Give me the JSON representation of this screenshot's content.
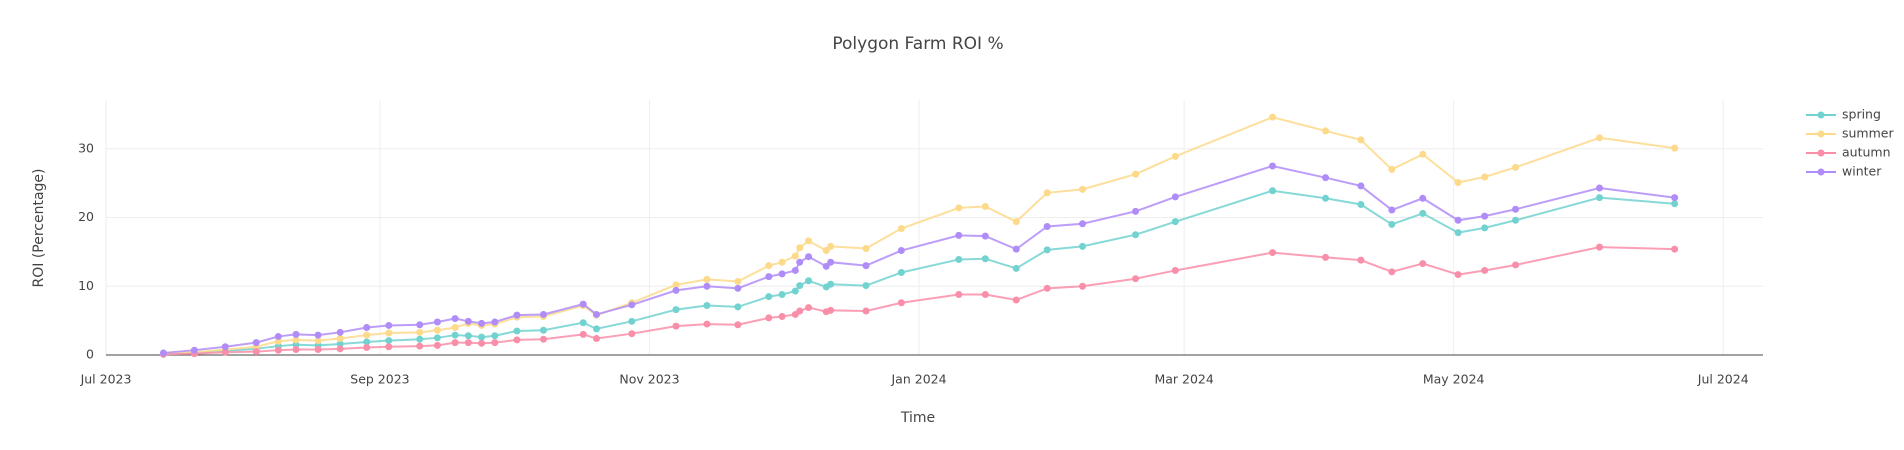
{
  "chart_data": {
    "type": "line",
    "title": "Polygon Farm ROI %",
    "x_label": "Time",
    "y_label": "ROI (Percentage)",
    "x": [
      "2023-07-14",
      "2023-07-21",
      "2023-07-28",
      "2023-08-04",
      "2023-08-09",
      "2023-08-13",
      "2023-08-18",
      "2023-08-23",
      "2023-08-29",
      "2023-09-03",
      "2023-09-10",
      "2023-09-14",
      "2023-09-18",
      "2023-09-21",
      "2023-09-24",
      "2023-09-27",
      "2023-10-02",
      "2023-10-08",
      "2023-10-17",
      "2023-10-20",
      "2023-10-28",
      "2023-11-07",
      "2023-11-14",
      "2023-11-21",
      "2023-11-28",
      "2023-12-01",
      "2023-12-04",
      "2023-12-05",
      "2023-12-07",
      "2023-12-11",
      "2023-12-12",
      "2023-12-20",
      "2023-12-28",
      "2024-01-10",
      "2024-01-16",
      "2024-01-23",
      "2024-01-30",
      "2024-02-07",
      "2024-02-19",
      "2024-02-28",
      "2024-03-21",
      "2024-04-02",
      "2024-04-10",
      "2024-04-17",
      "2024-04-24",
      "2024-05-02",
      "2024-05-08",
      "2024-05-15",
      "2024-06-03",
      "2024-06-20"
    ],
    "series": [
      {
        "name": "spring",
        "color": "#72d2d0",
        "values": [
          0.1,
          0.3,
          0.6,
          0.9,
          1.3,
          1.5,
          1.4,
          1.6,
          1.9,
          2.1,
          2.3,
          2.5,
          2.9,
          2.8,
          2.6,
          2.8,
          3.5,
          3.6,
          4.7,
          3.8,
          4.9,
          6.6,
          7.2,
          7.0,
          8.5,
          8.8,
          9.3,
          10.1,
          10.8,
          9.9,
          10.3,
          10.1,
          12.0,
          13.9,
          14.0,
          12.6,
          15.3,
          15.8,
          17.5,
          19.4,
          23.9,
          22.8,
          21.9,
          19.0,
          20.6,
          17.8,
          18.5,
          19.6,
          22.9,
          22.0
        ]
      },
      {
        "name": "summer",
        "color": "#fdd98a",
        "values": [
          0.2,
          0.4,
          0.8,
          1.2,
          2.0,
          2.2,
          2.1,
          2.4,
          2.9,
          3.2,
          3.3,
          3.6,
          4.0,
          4.6,
          4.3,
          4.5,
          5.5,
          5.6,
          7.2,
          5.8,
          7.6,
          10.2,
          11.0,
          10.7,
          13.0,
          13.5,
          14.4,
          15.6,
          16.6,
          15.2,
          15.8,
          15.5,
          18.4,
          21.4,
          21.6,
          19.4,
          23.6,
          24.1,
          26.3,
          28.9,
          34.6,
          32.6,
          31.3,
          27.0,
          29.2,
          25.1,
          25.9,
          27.3,
          31.6,
          30.1
        ]
      },
      {
        "name": "autumn",
        "color": "#f98ea8",
        "values": [
          0.1,
          0.2,
          0.4,
          0.5,
          0.7,
          0.8,
          0.8,
          0.9,
          1.1,
          1.2,
          1.3,
          1.4,
          1.8,
          1.8,
          1.7,
          1.8,
          2.2,
          2.3,
          3.0,
          2.4,
          3.1,
          4.2,
          4.5,
          4.4,
          5.4,
          5.6,
          5.9,
          6.4,
          6.9,
          6.3,
          6.5,
          6.4,
          7.6,
          8.8,
          8.8,
          8.0,
          9.7,
          10.0,
          11.1,
          12.3,
          14.9,
          14.2,
          13.8,
          12.1,
          13.3,
          11.7,
          12.3,
          13.1,
          15.7,
          15.4
        ]
      },
      {
        "name": "winter",
        "color": "#b08cf9",
        "values": [
          0.3,
          0.7,
          1.2,
          1.8,
          2.7,
          3.0,
          2.9,
          3.3,
          4.0,
          4.3,
          4.4,
          4.8,
          5.3,
          4.9,
          4.6,
          4.8,
          5.8,
          5.9,
          7.4,
          5.9,
          7.3,
          9.4,
          10.0,
          9.7,
          11.4,
          11.8,
          12.3,
          13.5,
          14.3,
          12.9,
          13.5,
          13.0,
          15.2,
          17.4,
          17.3,
          15.4,
          18.7,
          19.1,
          20.9,
          23.0,
          27.5,
          25.8,
          24.6,
          21.1,
          22.8,
          19.6,
          20.2,
          21.2,
          24.3,
          22.9
        ]
      }
    ],
    "xlim": [
      "2023-07-01",
      "2024-07-10"
    ],
    "xticks": [
      {
        "value": "2023-07-01",
        "label": "Jul 2023"
      },
      {
        "value": "2023-09-01",
        "label": "Sep 2023"
      },
      {
        "value": "2023-11-01",
        "label": "Nov 2023"
      },
      {
        "value": "2024-01-01",
        "label": "Jan 2024"
      },
      {
        "value": "2024-03-01",
        "label": "Mar 2024"
      },
      {
        "value": "2024-05-01",
        "label": "May 2024"
      },
      {
        "value": "2024-07-01",
        "label": "Jul 2024"
      }
    ],
    "ylim": [
      0,
      37.1
    ],
    "yticks": [
      0,
      10,
      20,
      30
    ],
    "grid": true,
    "legend": "right"
  }
}
